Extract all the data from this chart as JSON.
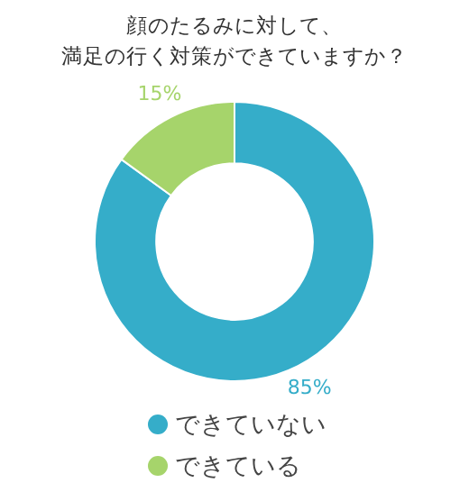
{
  "chart_data": {
    "type": "donut",
    "title": "顔のたるみに対して、満足の行く対策ができていますか？",
    "categories": [
      "できていない",
      "できている"
    ],
    "values": [
      85,
      15
    ],
    "colors": [
      "#35adc9",
      "#a6d46b"
    ],
    "value_labels": [
      "85%",
      "15%"
    ],
    "legend": "bottom"
  }
}
